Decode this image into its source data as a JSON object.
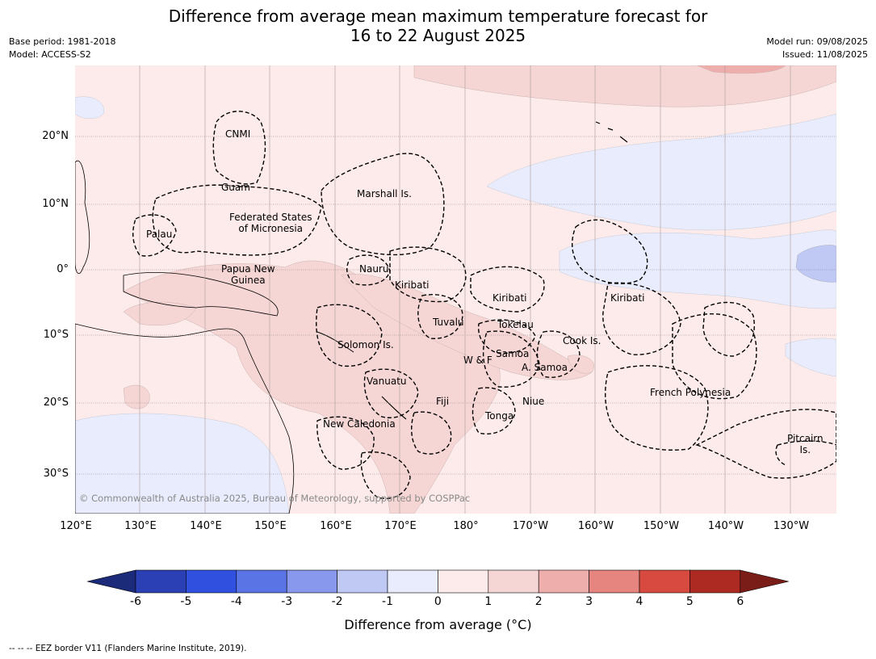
{
  "title_line1": "Difference from average mean maximum temperature forecast for",
  "title_line2": "16 to 22 August 2025",
  "meta_left": [
    "Base period: 1981-2018",
    "Model: ACCESS-S2"
  ],
  "meta_right": [
    "Model run: 09/08/2025",
    "Issued: 11/08/2025"
  ],
  "lat_labels": [
    "20°N",
    "10°N",
    "0°",
    "10°S",
    "20°S",
    "30°S"
  ],
  "lon_labels": [
    "120°E",
    "130°E",
    "140°E",
    "150°E",
    "160°E",
    "170°E",
    "180°",
    "170°W",
    "160°W",
    "150°W",
    "140°W",
    "130°W"
  ],
  "places": {
    "cnmi": "CNMI",
    "guam": "Guam",
    "marshall": "Marshall Is.",
    "fsm": "Federated States\nof Micronesia",
    "palau": "Palau",
    "png": "Papua New\nGuinea",
    "nauru": "Nauru",
    "kiribati_w": "Kiribati",
    "kiribati_c": "Kiribati",
    "kiribati_e": "Kiribati",
    "tuvalu": "Tuvalu",
    "tokelau": "Tokelau",
    "solomon": "Solomon Is.",
    "cook": "Cook Is.",
    "samoa": "Samoa",
    "wf": "W & F",
    "asamoa": "A. Samoa",
    "vanuatu": "Vanuatu",
    "fiji": "Fiji",
    "niue": "Niue",
    "tonga": "Tonga",
    "french_polynesia": "French Polynesia",
    "new_caledonia": "New Caledonia",
    "pitcairn": "Pitcairn\nIs."
  },
  "copyright": "© Commonwealth of Australia 2025, Bureau of Meteorology, supported by COSPPac",
  "colorbar": {
    "ticks": [
      "-6",
      "-5",
      "-4",
      "-3",
      "-2",
      "-1",
      "0",
      "1",
      "2",
      "3",
      "4",
      "5",
      "6"
    ],
    "colors": [
      "#1c2a7a",
      "#2a40b4",
      "#3050e0",
      "#5a74e6",
      "#8898ec",
      "#c0c8f4",
      "#e8ecfc",
      "#fcebea",
      "#f6d6d4",
      "#eeaeac",
      "#e68480",
      "#d84a40",
      "#ac2a22",
      "#7a1c18"
    ],
    "label": "Difference from average (°C)"
  },
  "footnote": "--  --  -- EEZ border V11 (Flanders Marine Institute, 2019)."
}
